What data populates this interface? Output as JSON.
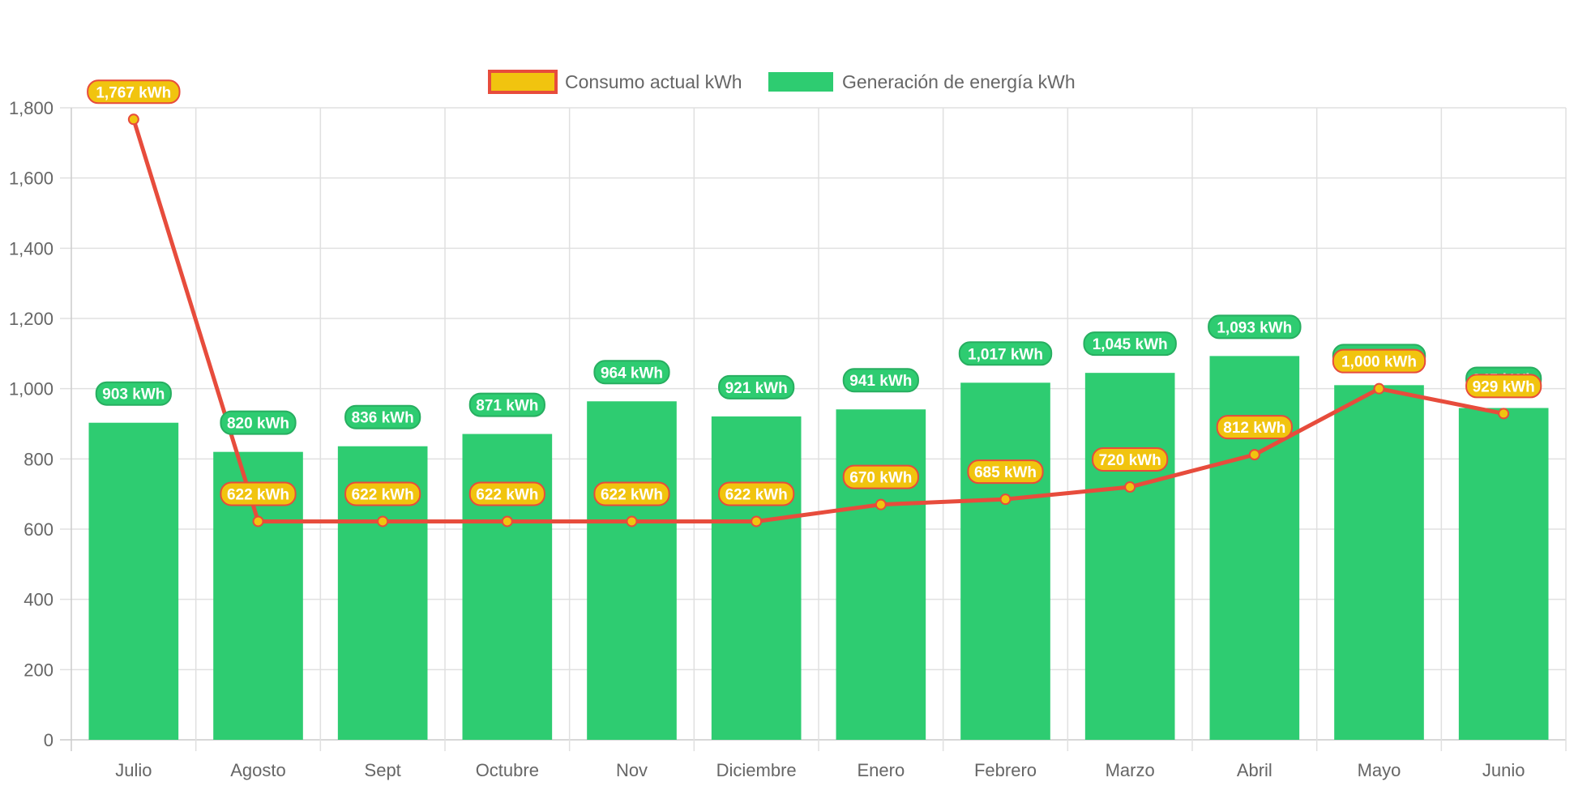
{
  "chart_data": {
    "type": "bar",
    "title": "",
    "xlabel": "",
    "ylabel": "",
    "ylim": [
      0,
      1800
    ],
    "ytick_step": 200,
    "grid": true,
    "legend_position": "top",
    "unit_suffix": " kWh",
    "categories": [
      "Julio",
      "Agosto",
      "Sept",
      "Octubre",
      "Nov",
      "Diciembre",
      "Enero",
      "Febrero",
      "Marzo",
      "Abril",
      "Mayo",
      "Junio"
    ],
    "series": [
      {
        "name": "Consumo actual kWh",
        "type": "line",
        "color": "#e74c3c",
        "fill": "#f1c40f",
        "values": [
          1767,
          622,
          622,
          622,
          622,
          622,
          670,
          685,
          720,
          812,
          1000,
          929
        ]
      },
      {
        "name": "Generación de energía kWh",
        "type": "bar",
        "color": "#2ecc71",
        "border": "#27ae60",
        "values": [
          903,
          820,
          836,
          871,
          964,
          921,
          941,
          1017,
          1045,
          1093,
          1010,
          945
        ]
      }
    ]
  }
}
